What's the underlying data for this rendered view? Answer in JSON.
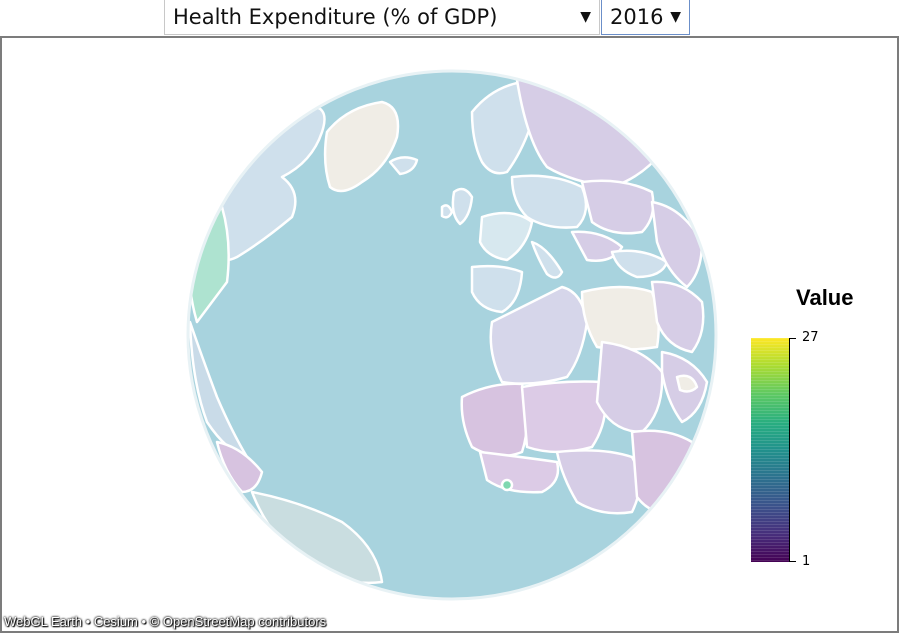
{
  "controls": {
    "metric_label": "Health Expenditure (% of GDP)",
    "year_label": "2016",
    "arrow": "▼"
  },
  "legend": {
    "title": "Value",
    "max_label": "27",
    "min_label": "1",
    "colormap": "viridis",
    "color_low": "#440154",
    "color_high": "#fde725"
  },
  "map": {
    "ocean_color": "#a8d3de",
    "no_data_color": "#f0ede6",
    "border_color": "#ffffff"
  },
  "credits": {
    "text": "WebGL Earth • Cesium • © OpenStreetMap contributors"
  }
}
